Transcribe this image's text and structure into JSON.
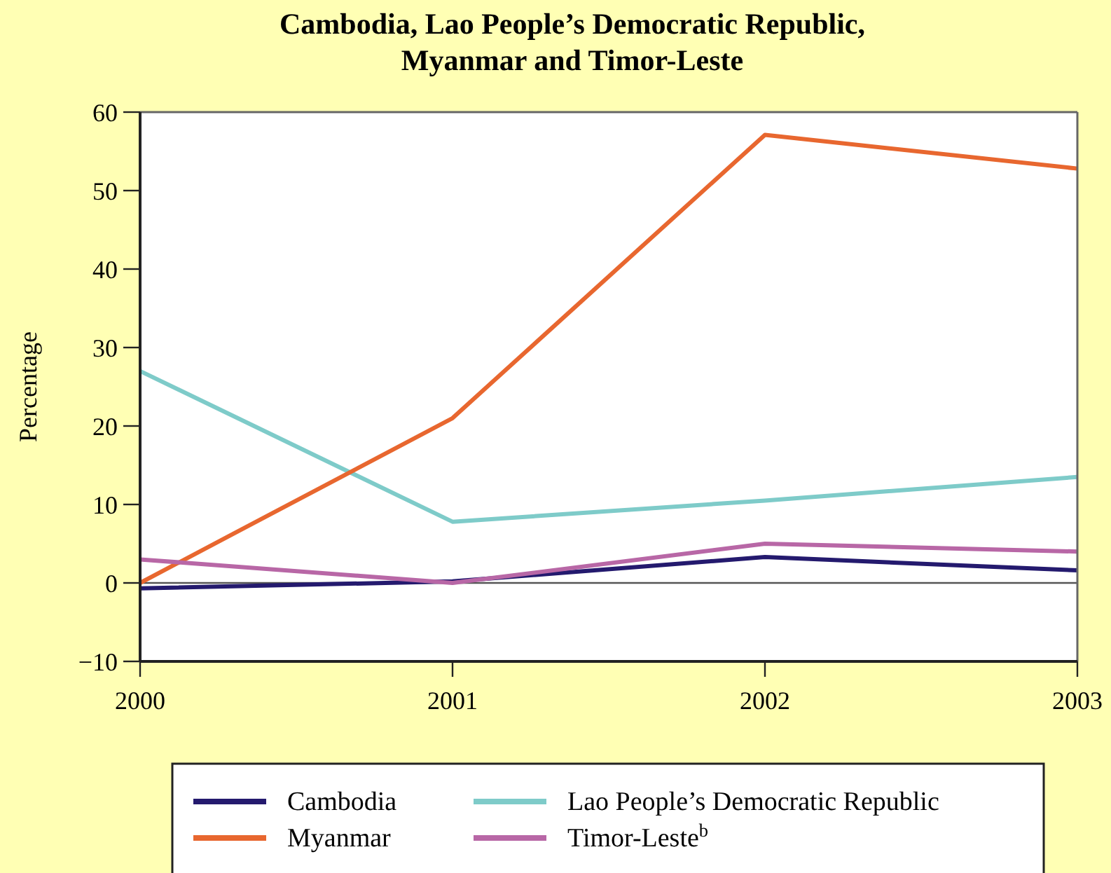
{
  "chart_data": {
    "type": "line",
    "title": "Cambodia, Lao People’s Democratic Republic, Myanmar and Timor-Leste",
    "ylabel": "Percentage",
    "x": [
      2000,
      2001,
      2002,
      2003
    ],
    "xlim": [
      2000,
      2003
    ],
    "xticks": [
      2000,
      2001,
      2002,
      2003
    ],
    "ylim": [
      -10,
      60
    ],
    "yticks": [
      -10,
      0,
      10,
      20,
      30,
      40,
      50,
      60
    ],
    "series": [
      {
        "name": "Cambodia",
        "color": "#241a6e",
        "values": [
          -0.7,
          0.2,
          3.3,
          1.6
        ]
      },
      {
        "name": "Lao People’s Democratic Republic",
        "color": "#7ecbc9",
        "values": [
          27,
          7.8,
          10.5,
          13.5
        ]
      },
      {
        "name": "Myanmar",
        "color": "#e8672f",
        "values": [
          0,
          21,
          57.1,
          52.8
        ]
      },
      {
        "name": "Timor-Leste$^{b}$",
        "color": "#b867a6",
        "values": [
          3,
          0,
          5,
          4
        ]
      }
    ],
    "ref_lines": [
      {
        "axis": "y",
        "value": 0,
        "color": "#555555"
      }
    ],
    "grid": false,
    "legend": "bottom",
    "line_style": "solid"
  }
}
